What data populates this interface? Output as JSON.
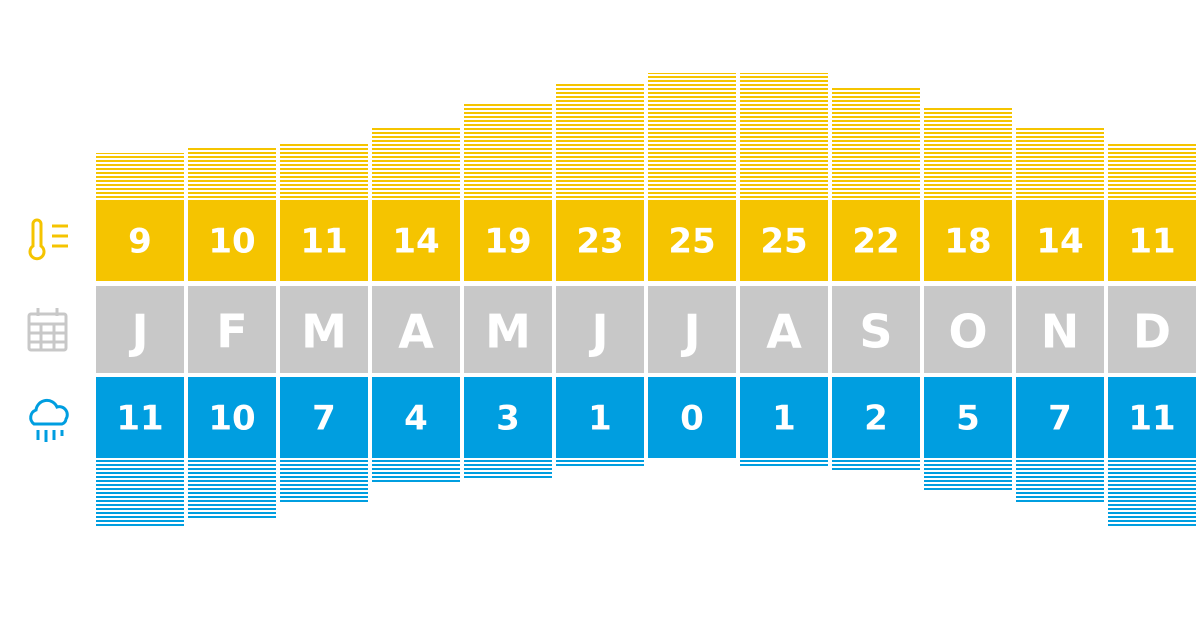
{
  "chart_data": {
    "type": "bar",
    "categories": [
      "J",
      "F",
      "M",
      "A",
      "M",
      "J",
      "J",
      "A",
      "S",
      "O",
      "N",
      "D"
    ],
    "series": [
      {
        "color": "#f5c400",
        "values": [
          9,
          10,
          11,
          14,
          19,
          23,
          25,
          25,
          22,
          18,
          14,
          11
        ]
      },
      {
        "color": "#009ee0",
        "values": [
          11,
          10,
          7,
          4,
          3,
          1,
          0,
          1,
          2,
          5,
          7,
          11
        ]
      }
    ],
    "category_color": "#c8c8c8"
  }
}
